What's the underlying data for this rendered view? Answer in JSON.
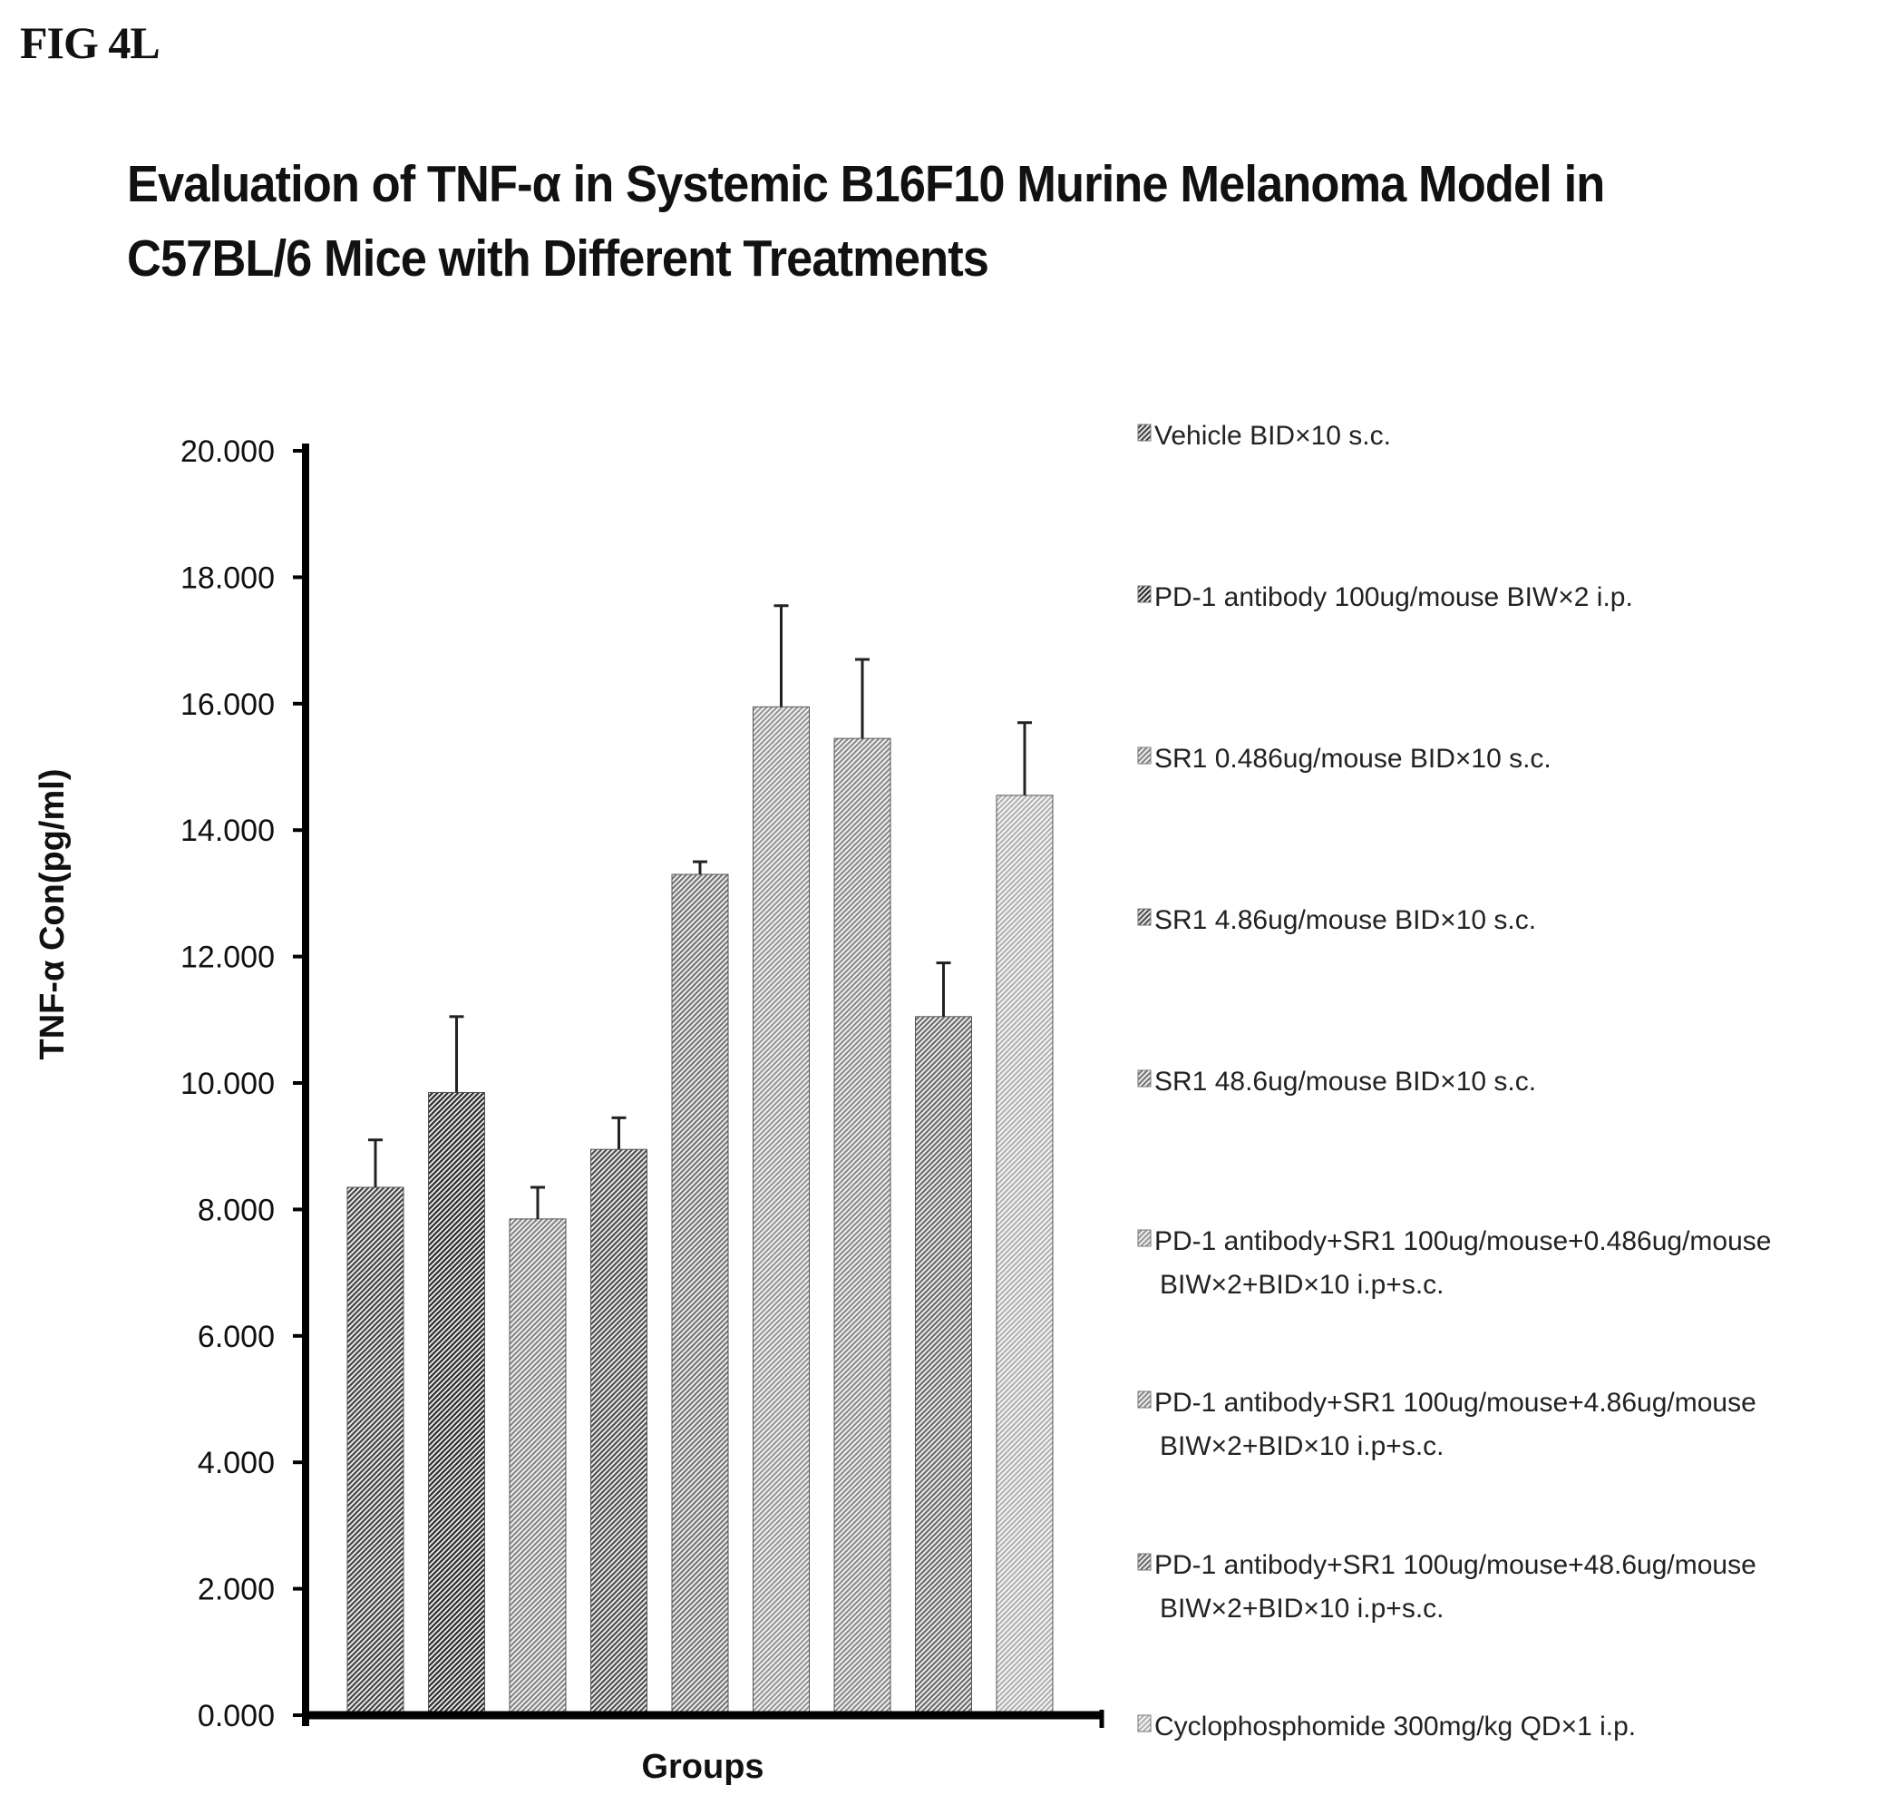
{
  "figure_label": "FIG 4L",
  "chart_data": {
    "type": "bar",
    "title": "Evaluation of TNF-α in Systemic B16F10 Murine Melanoma Model in C57BL/6 Mice with Different Treatments",
    "xlabel": "Groups",
    "ylabel": "TNF-α Con(pg/ml)",
    "ylim": [
      0,
      20
    ],
    "yticks": [
      "0.000",
      "2.000",
      "4.000",
      "6.000",
      "8.000",
      "10.000",
      "12.000",
      "14.000",
      "16.000",
      "18.000",
      "20.000"
    ],
    "grid": false,
    "legend_position": "right",
    "series": [
      {
        "name": "Vehicle  BID×10 s.c.",
        "value": 8.35,
        "error": 0.75
      },
      {
        "name": "PD-1 antibody 100ug/mouse BIW×2 i.p.",
        "value": 9.85,
        "error": 1.2
      },
      {
        "name": "SR1 0.486ug/mouse BID×10 s.c.",
        "value": 7.85,
        "error": 0.5
      },
      {
        "name": "SR1 4.86ug/mouse BID×10 s.c.",
        "value": 8.95,
        "error": 0.5
      },
      {
        "name": "SR1 48.6ug/mouse BID×10 s.c.",
        "value": 13.3,
        "error": 0.2
      },
      {
        "name": "PD-1 antibody+SR1 100ug/mouse+0.486ug/mouse BIW×2+BID×10 i.p+s.c.",
        "value": 15.95,
        "error": 1.6
      },
      {
        "name": "PD-1 antibody+SR1 100ug/mouse+4.86ug/mouse BIW×2+BID×10 i.p+s.c.",
        "value": 15.45,
        "error": 1.25
      },
      {
        "name": "PD-1 antibody+SR1 100ug/mouse+48.6ug/mouse BIW×2+BID×10 i.p+s.c.",
        "value": 11.05,
        "error": 0.85
      },
      {
        "name": "Cyclophosphomide 300mg/kg QD×1 i.p.",
        "value": 14.55,
        "error": 1.15
      }
    ],
    "legend_lines": [
      [
        "Vehicle  BID×10 s.c."
      ],
      [
        "PD-1 antibody 100ug/mouse BIW×2 i.p."
      ],
      [
        "SR1 0.486ug/mouse BID×10 s.c."
      ],
      [
        "SR1 4.86ug/mouse BID×10 s.c."
      ],
      [
        "SR1 48.6ug/mouse BID×10 s.c."
      ],
      [
        "PD-1 antibody+SR1 100ug/mouse+0.486ug/mouse",
        "BIW×2+BID×10 i.p+s.c."
      ],
      [
        "PD-1 antibody+SR1 100ug/mouse+4.86ug/mouse",
        "BIW×2+BID×10 i.p+s.c."
      ],
      [
        "PD-1 antibody+SR1 100ug/mouse+48.6ug/mouse",
        "BIW×2+BID×10 i.p+s.c."
      ],
      [
        "Cyclophosphomide 300mg/kg QD×1 i.p."
      ]
    ],
    "bar_colors": [
      "#4a4a4a",
      "#333333",
      "#8a8a8a",
      "#555555",
      "#7a7a7a",
      "#9a9a9a",
      "#8f8f8f",
      "#707070",
      "#b4b4b4"
    ]
  }
}
